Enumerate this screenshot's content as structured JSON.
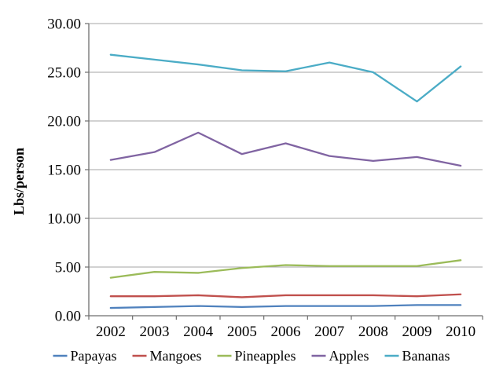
{
  "chart_data": {
    "type": "line",
    "title": "",
    "xlabel": "",
    "ylabel": "Lbs/person",
    "categories": [
      "2002",
      "2003",
      "2004",
      "2005",
      "2006",
      "2007",
      "2008",
      "2009",
      "2010"
    ],
    "series": [
      {
        "name": "Papayas",
        "color": "#4F81BD",
        "values": [
          0.8,
          0.9,
          1.0,
          0.9,
          1.0,
          1.0,
          1.0,
          1.1,
          1.1
        ]
      },
      {
        "name": "Mangoes",
        "color": "#C0504D",
        "values": [
          2.0,
          2.0,
          2.1,
          1.9,
          2.1,
          2.1,
          2.1,
          2.0,
          2.2
        ]
      },
      {
        "name": "Pineapples",
        "color": "#9BBB59",
        "values": [
          3.9,
          4.5,
          4.4,
          4.9,
          5.2,
          5.1,
          5.1,
          5.1,
          5.7
        ]
      },
      {
        "name": "Apples",
        "color": "#8064A2",
        "values": [
          16.0,
          16.8,
          18.8,
          16.6,
          17.7,
          16.4,
          15.9,
          16.3,
          15.4
        ]
      },
      {
        "name": "Bananas",
        "color": "#4BACC6",
        "values": [
          26.8,
          26.3,
          25.8,
          25.2,
          25.1,
          26.0,
          25.0,
          22.0,
          25.6
        ]
      }
    ],
    "ylim": [
      0,
      30
    ],
    "y_ticks": [
      {
        "value": 0,
        "label": "0.00"
      },
      {
        "value": 5,
        "label": "5.00"
      },
      {
        "value": 10,
        "label": "10.00"
      },
      {
        "value": 15,
        "label": "15.00"
      },
      {
        "value": 20,
        "label": "20.00"
      },
      {
        "value": 25,
        "label": "25.00"
      },
      {
        "value": 30,
        "label": "30.00"
      }
    ],
    "layout": {
      "grid": true,
      "legend_position": "bottom",
      "gridline_color": "#A6A6A6",
      "axis_color": "#6E6E6E",
      "background": "#FFFFFF"
    }
  }
}
